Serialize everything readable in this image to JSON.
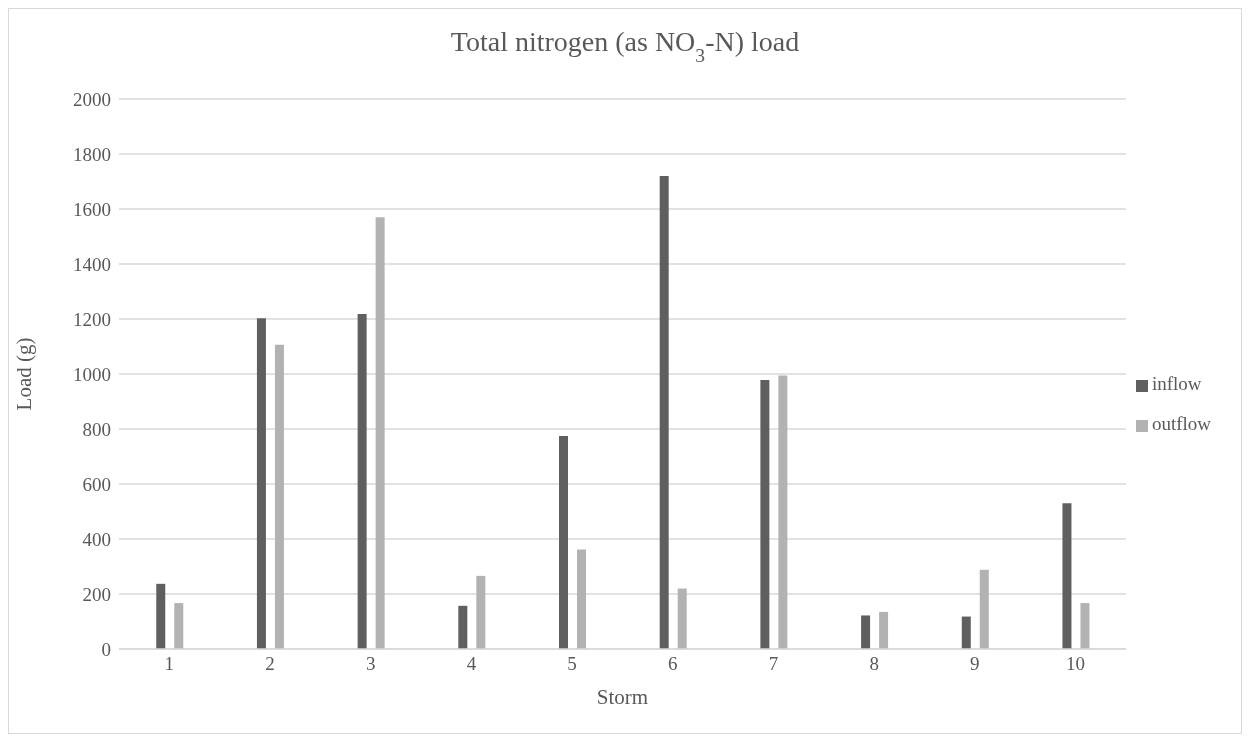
{
  "chart_data": {
    "type": "bar",
    "title": "Total nitrogen (as NO$_{3}$-N) load",
    "xlabel": "Storm",
    "ylabel": "Load (g)",
    "categories": [
      "1",
      "2",
      "3",
      "4",
      "5",
      "6",
      "7",
      "8",
      "9",
      "10"
    ],
    "series": [
      {
        "name": "inflow",
        "color": "#5f5f5f",
        "values": [
          237,
          1203,
          1218,
          157,
          775,
          1720,
          978,
          122,
          118,
          530
        ]
      },
      {
        "name": "outflow",
        "color": "#b2b2b2",
        "values": [
          167,
          1106,
          1570,
          266,
          362,
          220,
          995,
          135,
          288,
          167
        ]
      }
    ],
    "ylim": [
      0,
      2000
    ],
    "yticks": [
      0,
      200,
      400,
      600,
      800,
      1000,
      1200,
      1400,
      1600,
      1800,
      2000
    ],
    "grid": "y",
    "legend": "right"
  }
}
